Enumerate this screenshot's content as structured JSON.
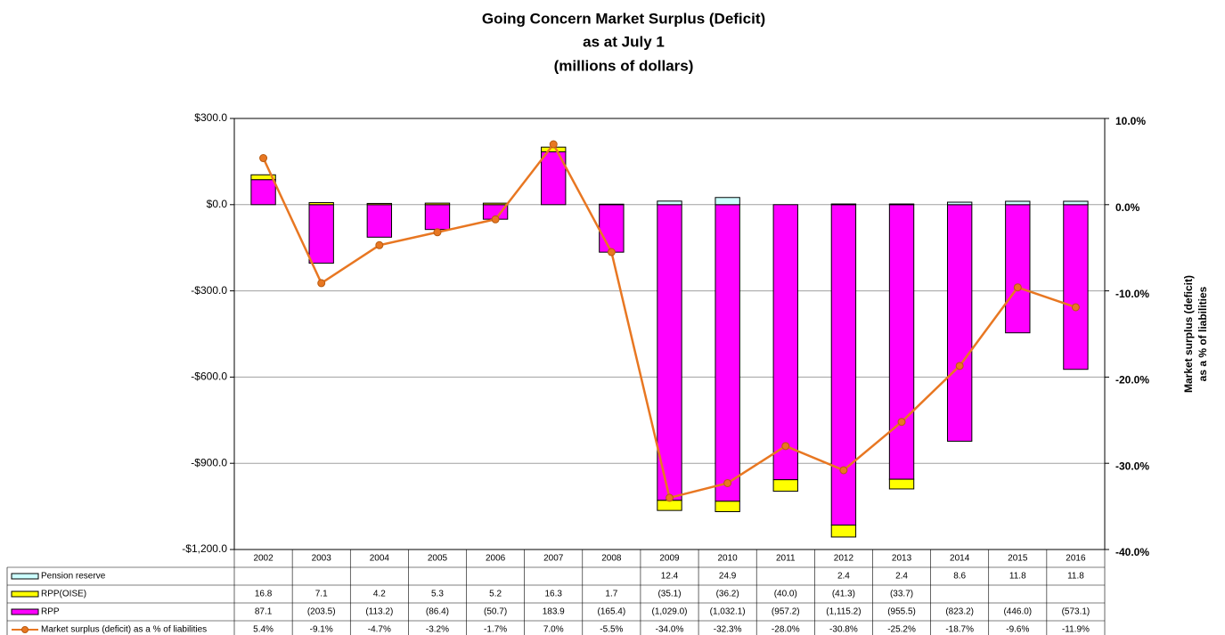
{
  "chart_data": {
    "type": "stacked-bar-line",
    "title": [
      "Going Concern Market Surplus (Deficit)",
      "as at July 1",
      "(millions of dollars)"
    ],
    "y2label": [
      "Market surplus (deficit)",
      "as a % of liabilities"
    ],
    "categories": [
      "2002",
      "2003",
      "2004",
      "2005",
      "2006",
      "2007",
      "2008",
      "2009",
      "2010",
      "2011",
      "2012",
      "2013",
      "2014",
      "2015",
      "2016"
    ],
    "series": [
      {
        "name": "Pension reserve",
        "type": "bar",
        "color": "#ccffff",
        "values": [
          null,
          null,
          null,
          null,
          null,
          null,
          null,
          12.4,
          24.9,
          null,
          2.4,
          2.4,
          8.6,
          11.8,
          11.8
        ]
      },
      {
        "name": "RPP(OISE)",
        "type": "bar",
        "color": "#ffff00",
        "values": [
          16.8,
          7.1,
          4.2,
          5.3,
          5.2,
          16.3,
          1.7,
          -35.1,
          -36.2,
          -40.0,
          -41.3,
          -33.7,
          null,
          null,
          null
        ],
        "value_labels": [
          "16.8",
          "7.1",
          "4.2",
          "5.3",
          "5.2",
          "16.3",
          "1.7",
          "(35.1)",
          "(36.2)",
          "(40.0)",
          "(41.3)",
          "(33.7)",
          null,
          null,
          null
        ]
      },
      {
        "name": "RPP",
        "type": "bar",
        "color": "#ff00ff",
        "values": [
          87.1,
          -203.5,
          -113.2,
          -86.4,
          -50.7,
          183.9,
          -165.4,
          -1029.0,
          -1032.1,
          -957.2,
          -1115.2,
          -955.5,
          -823.2,
          -446.0,
          -573.1
        ],
        "value_labels": [
          "87.1",
          "(203.5)",
          "(113.2)",
          "(86.4)",
          "(50.7)",
          "183.9",
          "(165.4)",
          "(1,029.0)",
          "(1,032.1)",
          "(957.2)",
          "(1,115.2)",
          "(955.5)",
          "(823.2)",
          "(446.0)",
          "(573.1)"
        ]
      },
      {
        "name": "Market surplus (deficit) as a % of liabilities",
        "type": "line",
        "axis": "y2",
        "color": "#e87722",
        "values": [
          5.4,
          -9.1,
          -4.7,
          -3.2,
          -1.7,
          7.0,
          -5.5,
          -34.0,
          -32.3,
          -28.0,
          -30.8,
          -25.2,
          -18.7,
          -9.6,
          -11.9
        ],
        "value_labels": [
          "5.4%",
          "-9.1%",
          "-4.7%",
          "-3.2%",
          "-1.7%",
          "7.0%",
          "-5.5%",
          "-34.0%",
          "-32.3%",
          "-28.0%",
          "-30.8%",
          "-25.2%",
          "-18.7%",
          "-9.6%",
          "-11.9%"
        ]
      }
    ],
    "ylim": [
      -1200,
      300
    ],
    "yticks": [
      {
        "value": -1200,
        "label": "-$1,200.0"
      },
      {
        "value": -900,
        "label": "-$900.0"
      },
      {
        "value": -600,
        "label": "-$600.0"
      },
      {
        "value": -300,
        "label": "-$300.0"
      },
      {
        "value": 0,
        "label": "$0.0"
      },
      {
        "value": 300,
        "label": "$300.0"
      }
    ],
    "y2lim": [
      -40,
      10
    ],
    "y2ticks": [
      {
        "value": -40,
        "label": "-40.0%"
      },
      {
        "value": -30,
        "label": "-30.0%"
      },
      {
        "value": -20,
        "label": "-20.0%"
      },
      {
        "value": -10,
        "label": "-10.0%"
      },
      {
        "value": 0,
        "label": "0.0%"
      },
      {
        "value": 10,
        "label": "10.0%"
      }
    ],
    "grid": true
  }
}
